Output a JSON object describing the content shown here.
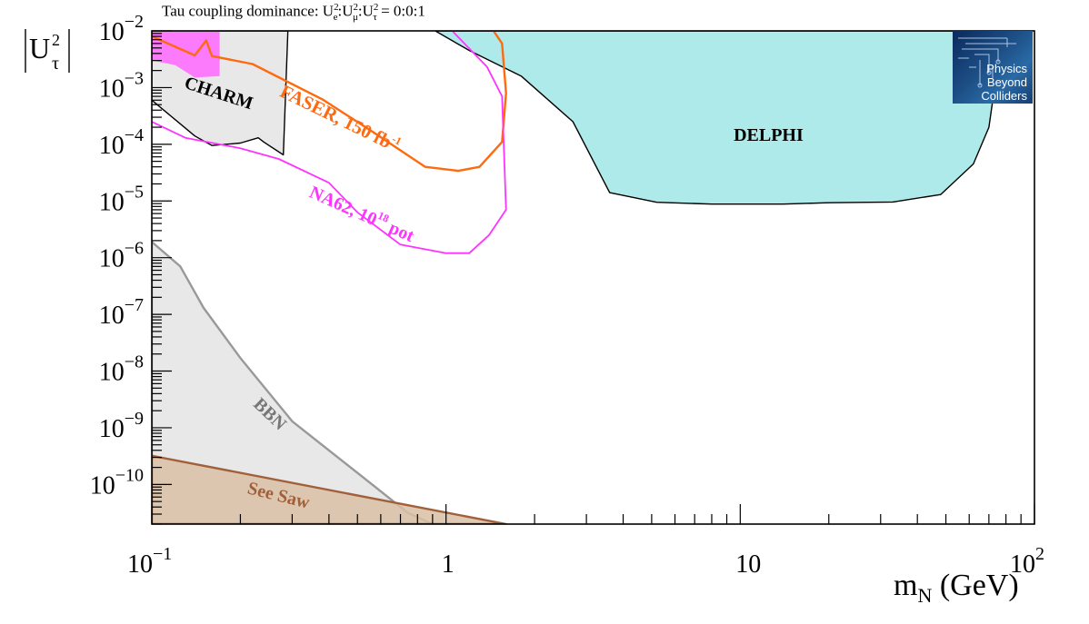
{
  "title": {
    "prefix": "Tau coupling dominance: ",
    "ratio": "U_e^2:U_μ^2:U_τ^2 = 0:0:1",
    "u_label": "U",
    "sup2": "2",
    "sub_e": "e",
    "sub_mu": "μ",
    "sub_tau": "τ",
    "sep": ":",
    "suffix": " = 0:0:1"
  },
  "logo": {
    "line1": "Physics",
    "line2": "Beyond",
    "line3": "Colliders"
  },
  "chart_data": {
    "type": "area",
    "x_scale": "log",
    "y_scale": "log",
    "xlim": [
      0.1,
      100
    ],
    "ylim": [
      2e-11,
      0.01
    ],
    "xlabel": "m_N (GeV)",
    "xlabel_main": "m",
    "xlabel_sub": "N",
    "xlabel_unit": " (GeV)",
    "ylabel": "|U_τ^2|",
    "x_tick_labels": [
      {
        "value": 0.1,
        "base": "10",
        "exp": "−1"
      },
      {
        "value": 1,
        "base": "1",
        "exp": ""
      },
      {
        "value": 10,
        "base": "10",
        "exp": ""
      },
      {
        "value": 100,
        "base": "10",
        "exp": "2"
      }
    ],
    "y_tick_labels": [
      {
        "value": 0.01,
        "base": "10",
        "exp": "−2"
      },
      {
        "value": 0.001,
        "base": "10",
        "exp": "−3"
      },
      {
        "value": 0.0001,
        "base": "10",
        "exp": "−4"
      },
      {
        "value": 1e-05,
        "base": "10",
        "exp": "−5"
      },
      {
        "value": 1e-06,
        "base": "10",
        "exp": "−6"
      },
      {
        "value": 1e-07,
        "base": "10",
        "exp": "−7"
      },
      {
        "value": 1e-08,
        "base": "10",
        "exp": "−8"
      },
      {
        "value": 1e-09,
        "base": "10",
        "exp": "−9"
      },
      {
        "value": 1e-10,
        "base": "10",
        "exp": "−10"
      }
    ],
    "colors": {
      "delphi_fill": "#aeeaea",
      "charm_fill": "#e8e8e8",
      "bbn_fill": "#e8e8e8",
      "bbn_line": "#999999",
      "seesaw_fill": "#d9bfa5",
      "seesaw_line": "#a0603a",
      "faser": "#ff6a10",
      "na62": "#ff33ff",
      "magenta_fill": "#ff66ff"
    },
    "regions": [
      {
        "name": "DELPHI",
        "label": "DELPHI",
        "label_at": [
          9.5,
          0.000115
        ],
        "label_color": "#000000",
        "kind": "fill",
        "points": [
          [
            0.92,
            0.01
          ],
          [
            1.2,
            0.0045
          ],
          [
            1.8,
            0.0016
          ],
          [
            2.7,
            0.00025
          ],
          [
            3.6,
            1.4e-05
          ],
          [
            5.2,
            9.5e-06
          ],
          [
            8,
            8.8e-06
          ],
          [
            14,
            8.8e-06
          ],
          [
            20,
            9.3e-06
          ],
          [
            33,
            9.6e-06
          ],
          [
            48,
            1.3e-05
          ],
          [
            62,
            4.5e-05
          ],
          [
            70,
            0.0002
          ],
          [
            74,
            0.0015
          ],
          [
            76,
            0.01
          ]
        ]
      },
      {
        "name": "CHARM",
        "label": "CHARM",
        "label_at": [
          0.128,
          0.001
        ],
        "label_color": "#000000",
        "kind": "fill",
        "points": [
          [
            0.1,
            0.01
          ],
          [
            0.29,
            0.01
          ],
          [
            0.28,
            6.5e-05
          ],
          [
            0.24,
            0.00011
          ],
          [
            0.23,
            0.00013
          ],
          [
            0.2,
            0.000105
          ],
          [
            0.16,
            9.5e-05
          ],
          [
            0.14,
            0.00014
          ],
          [
            0.1,
            0.0006
          ]
        ]
      },
      {
        "name": "BBN",
        "label": "BBN",
        "label_at": [
          0.22,
          2.5e-09
        ],
        "label_color": "#777777",
        "kind": "fill",
        "points": [
          [
            0.1,
            1.9e-06
          ],
          [
            0.125,
            7e-07
          ],
          [
            0.15,
            1.3e-07
          ],
          [
            0.2,
            1.7e-08
          ],
          [
            0.3,
            1.3e-09
          ],
          [
            0.5,
            1.6e-10
          ],
          [
            0.74,
            3.2e-11
          ],
          [
            0.9,
            2e-11
          ],
          [
            0.1,
            2e-11
          ]
        ]
      },
      {
        "name": "See Saw",
        "label": "See Saw",
        "label_at": [
          0.21,
          7e-11
        ],
        "label_color": "#a0603a",
        "kind": "fill",
        "points": [
          [
            0.1,
            3.2e-10
          ],
          [
            1.6,
            2e-11
          ],
          [
            0.1,
            2e-11
          ]
        ]
      },
      {
        "name": "Magenta",
        "label": "",
        "kind": "fill",
        "points": [
          [
            0.1,
            0.01
          ],
          [
            0.17,
            0.01
          ],
          [
            0.17,
            0.0016
          ],
          [
            0.14,
            0.0015
          ],
          [
            0.12,
            0.0025
          ],
          [
            0.1,
            0.003
          ]
        ]
      },
      {
        "name": "FASER",
        "label": "FASER, 150 fb",
        "label_sup": "-1",
        "label_at": [
          0.27,
          0.00072
        ],
        "label_color": "#ff6a10",
        "kind": "line",
        "points": [
          [
            0.1,
            0.008
          ],
          [
            0.14,
            0.0037
          ],
          [
            0.153,
            0.0068
          ],
          [
            0.16,
            0.0036
          ],
          [
            0.22,
            0.0026
          ],
          [
            0.38,
            0.00062
          ],
          [
            0.55,
            0.00018
          ],
          [
            0.85,
            4e-05
          ],
          [
            1.1,
            3.4e-05
          ],
          [
            1.3,
            4e-05
          ],
          [
            1.55,
            0.00011
          ],
          [
            1.6,
            0.0008
          ],
          [
            1.55,
            0.006
          ],
          [
            1.45,
            0.01
          ]
        ]
      },
      {
        "name": "NA62",
        "label": "NA62, 10",
        "label_sup": "18",
        "label_rest": " pot",
        "label_at": [
          0.34,
          1.2e-05
        ],
        "label_color": "#ff33ff",
        "kind": "line",
        "points": [
          [
            0.1,
            0.00025
          ],
          [
            0.13,
            0.00013
          ],
          [
            0.2,
            8.5e-05
          ],
          [
            0.27,
            5.5e-05
          ],
          [
            0.4,
            2.1e-05
          ],
          [
            0.5,
            6.3e-06
          ],
          [
            0.7,
            1.7e-06
          ],
          [
            1,
            1.2e-06
          ],
          [
            1.2,
            1.2e-06
          ],
          [
            1.4,
            2.5e-06
          ],
          [
            1.6,
            7e-06
          ],
          [
            1.55,
            0.0007
          ],
          [
            1.38,
            0.0023
          ],
          [
            1.05,
            0.01
          ]
        ]
      }
    ]
  }
}
